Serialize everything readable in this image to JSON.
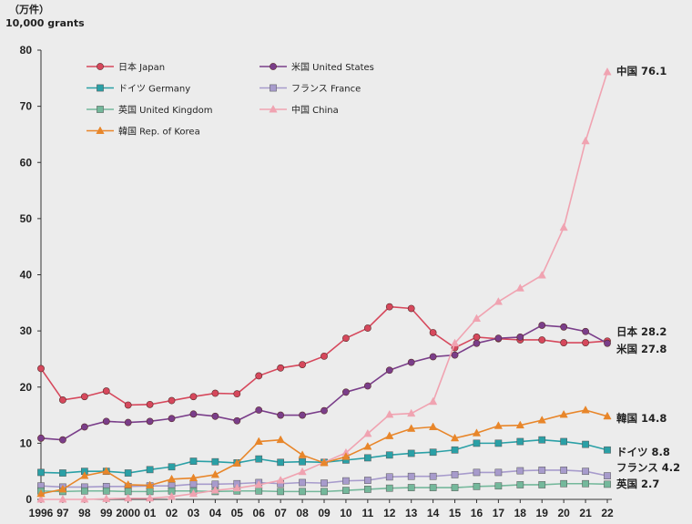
{
  "unit_label_ja": "（万件）",
  "unit_label_en": "10,000 grants",
  "colors": {
    "Japan": "#d6485c",
    "United States": "#7a3e8a",
    "Germany": "#2aa0a6",
    "France": "#a79bcc",
    "United Kingdom": "#74b89b",
    "China": "#f0a3b1",
    "Rep. of Korea": "#e8862a"
  },
  "chart_data": {
    "type": "line",
    "title": "",
    "xlabel": "",
    "ylabel": "（万件） 10,000 grants",
    "ylim": [
      0,
      80
    ],
    "yticks": [
      0,
      10,
      20,
      30,
      40,
      50,
      60,
      70,
      80
    ],
    "grid": false,
    "legend_position": "top-left",
    "x_tick_labels": [
      "1996",
      "97",
      "98",
      "99",
      "2000",
      "01",
      "02",
      "03",
      "04",
      "05",
      "06",
      "07",
      "08",
      "09",
      "10",
      "11",
      "12",
      "13",
      "14",
      "15",
      "16",
      "17",
      "18",
      "19",
      "20",
      "21",
      "22"
    ],
    "series": [
      {
        "name": "日本 Japan",
        "marker": "circle",
        "values": [
          23.3,
          17.7,
          18.3,
          19.3,
          16.8,
          16.9,
          17.6,
          18.3,
          18.9,
          18.8,
          22.0,
          23.4,
          24.0,
          25.5,
          28.7,
          30.5,
          34.3,
          34.0,
          29.7,
          27.0,
          28.9,
          28.6,
          28.4,
          28.4,
          27.9,
          27.9,
          28.2
        ],
        "end_label": "日本 28.2"
      },
      {
        "name": "米国 United States",
        "marker": "circle",
        "values": [
          10.9,
          10.6,
          12.9,
          13.9,
          13.7,
          13.9,
          14.4,
          15.2,
          14.8,
          14.0,
          15.9,
          15.0,
          15.0,
          15.8,
          19.1,
          20.2,
          23.0,
          24.4,
          25.4,
          25.7,
          27.8,
          28.7,
          28.9,
          31.0,
          30.7,
          29.9,
          27.8
        ],
        "end_label": "米国 27.8"
      },
      {
        "name": "ドイツ Germany",
        "marker": "square",
        "values": [
          4.8,
          4.7,
          5.0,
          5.0,
          4.7,
          5.3,
          5.8,
          6.8,
          6.7,
          6.5,
          7.2,
          6.6,
          6.7,
          6.6,
          7.0,
          7.4,
          7.9,
          8.2,
          8.4,
          8.8,
          10.0,
          10.0,
          10.3,
          10.6,
          10.3,
          9.8,
          8.8
        ],
        "end_label": "ドイツ 8.8"
      },
      {
        "name": "フランス France",
        "marker": "square",
        "values": [
          2.4,
          2.2,
          2.2,
          2.3,
          2.3,
          2.4,
          2.4,
          2.7,
          2.7,
          2.8,
          3.0,
          2.8,
          3.0,
          2.9,
          3.3,
          3.4,
          4.0,
          4.1,
          4.1,
          4.4,
          4.8,
          4.8,
          5.1,
          5.2,
          5.2,
          5.0,
          4.2
        ],
        "end_label": "フランス 4.2"
      },
      {
        "name": "英国 United Kingdom",
        "marker": "square",
        "values": [
          1.5,
          1.4,
          1.5,
          1.5,
          1.4,
          1.4,
          1.5,
          1.5,
          1.4,
          1.5,
          1.5,
          1.4,
          1.4,
          1.4,
          1.6,
          1.8,
          2.0,
          2.1,
          2.1,
          2.1,
          2.3,
          2.4,
          2.6,
          2.6,
          2.8,
          2.8,
          2.7
        ],
        "end_label": "英国 2.7"
      },
      {
        "name": "中国 China",
        "marker": "triangle",
        "values": [
          0.0,
          0.0,
          0.0,
          0.1,
          0.2,
          0.2,
          0.5,
          1.0,
          1.6,
          2.0,
          2.6,
          3.4,
          4.9,
          6.6,
          8.3,
          11.7,
          15.1,
          15.3,
          17.4,
          27.8,
          32.2,
          35.2,
          37.6,
          39.9,
          48.4,
          63.8,
          76.1
        ],
        "end_label": "中国 76.1"
      },
      {
        "name": "韓国 Rep. of Korea",
        "marker": "triangle",
        "values": [
          1.0,
          1.8,
          4.2,
          5.0,
          2.6,
          2.5,
          3.6,
          3.8,
          4.4,
          6.4,
          10.3,
          10.6,
          7.9,
          6.5,
          7.6,
          9.4,
          11.3,
          12.6,
          12.9,
          10.9,
          11.8,
          13.1,
          13.2,
          14.1,
          15.1,
          15.9,
          14.8
        ],
        "end_label": "韓国 14.8"
      }
    ]
  }
}
